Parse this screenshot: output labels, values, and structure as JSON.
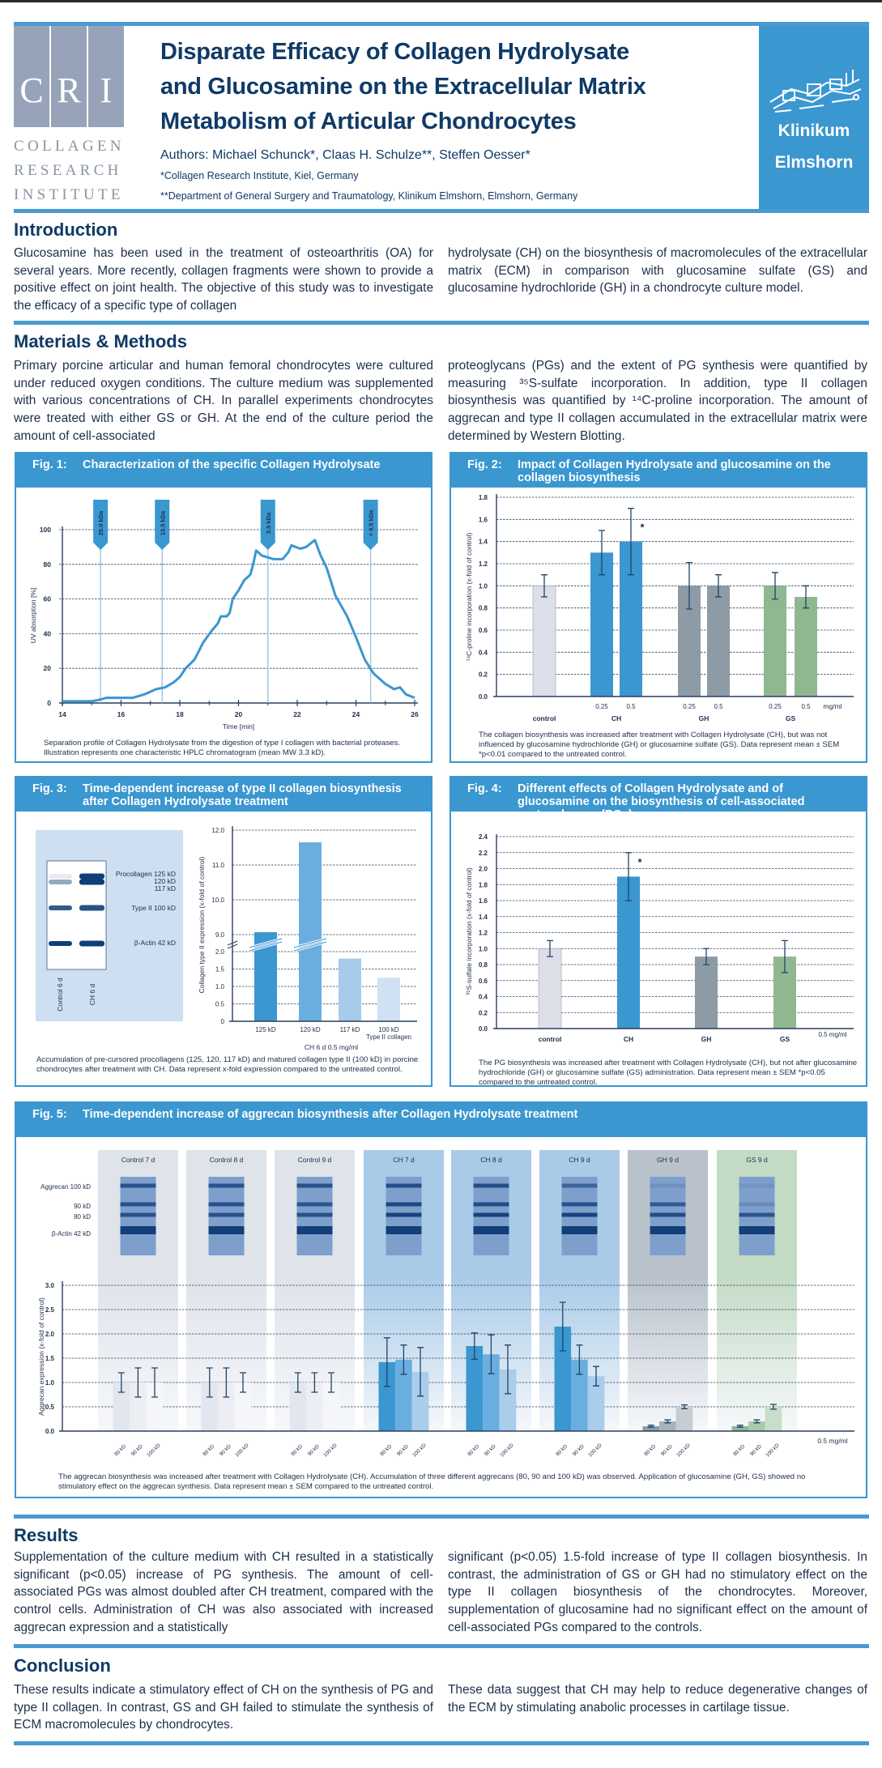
{
  "header": {
    "cri_letters": [
      "C",
      "R",
      "I"
    ],
    "cri_words": [
      "COLLAGEN",
      "RESEARCH",
      "INSTITUTE"
    ],
    "title_lines": [
      "Disparate Efficacy of Collagen Hydrolysate",
      "and Glucosamine on the Extracellular Matrix",
      "Metabolism of Articular Chondrocytes"
    ],
    "authors": "Authors: Michael Schunck*, Claas H. Schulze**, Steffen Oesser*",
    "affiliation_1": "*Collagen Research Institute, Kiel, Germany",
    "affiliation_2": "**Department of General Surgery and Traumatology, Klinikum Elmshorn, Elmshorn, Germany",
    "partner": [
      "Klinikum",
      "Elmshorn"
    ],
    "accent_color": "#3a97d0",
    "title_color": "#0f3a66"
  },
  "sections": {
    "introduction": {
      "heading": "Introduction",
      "col1": "Glucosamine has been used in the treatment of osteoarthritis (OA) for several years. More recently, collagen fragments were shown to provide a positive effect on joint health. The objective of this study was to investigate the efficacy of a specific type of collagen",
      "col2": "hydrolysate (CH) on the biosynthesis of macromolecules of the extracellular matrix (ECM) in comparison with glucosamine sulfate (GS) and glucosamine hydrochloride (GH) in a chondrocyte culture model."
    },
    "methods": {
      "heading": "Materials & Methods",
      "col1": "Primary porcine articular and human femoral chondrocytes were cultured under reduced oxygen conditions. The culture medium was supplemented with various concentrations of CH. In parallel experiments chondrocytes were treated with either GS or GH. At the end of the culture period the amount of cell-associated",
      "col2": "proteoglycans (PGs) and the extent of PG synthesis were quantified by measuring ³⁵S-sulfate incorporation. In addition, type II collagen biosynthesis was quantified by ¹⁴C-proline incorporation. The amount of aggrecan and type II collagen accumulated in the extracellular matrix were determined by Western Blotting."
    },
    "results": {
      "heading": "Results",
      "col1": "Supplementation of the culture medium with CH resulted in a statistically significant (p<0.05) increase of PG synthesis. The amount of cell-associated PGs was almost doubled after CH treatment, compared with the control cells. Administration of CH was also associated with increased aggrecan expression and a statistically",
      "col2": "significant (p<0.05) 1.5-fold increase of type II collagen biosynthesis. In contrast, the administration of GS or GH had no stimulatory effect on the type II collagen biosynthesis of the chondrocytes. Moreover, supplementation of glucosamine had no significant effect on the amount of cell-associated PGs compared to the controls."
    },
    "conclusion": {
      "heading": "Conclusion",
      "col1": "These results indicate a stimulatory effect of CH on the synthesis of PG and type II collagen. In contrast, GS and GH failed to stimulate the synthesis of ECM macromolecules by chondrocytes.",
      "col2": "These data suggest that CH may help to reduce degenerative changes of the ECM by stimulating anabolic processes in cartilage tissue."
    }
  },
  "chart_data": [
    {
      "type": "line",
      "label": "Fig. 1:",
      "title": "Characterization of the specific Collagen Hydrolysate",
      "xlabel": "Time [min]",
      "ylabel": "UV absorption [%]",
      "xlim": [
        14,
        26
      ],
      "ylim": [
        0,
        100
      ],
      "xticks": [
        "14",
        "16",
        "18",
        "20",
        "22",
        "24",
        "26"
      ],
      "yticks": [
        "0",
        "20",
        "40",
        "60",
        "80",
        "100"
      ],
      "grid": "horizontal dashed",
      "line_color": "#3a97d0",
      "markers": [
        {
          "label": "25.0 kDa",
          "x": 15.3
        },
        {
          "label": "13.5 kDa",
          "x": 17.4
        },
        {
          "label": "3.5 kDa",
          "x": 21.0
        },
        {
          "label": "< 0.5 kDa",
          "x": 24.5
        }
      ],
      "series": [
        {
          "x": [
            14,
            15,
            15.3,
            15.5,
            16.4,
            16.8,
            17.2,
            17.5,
            17.8,
            18,
            18.2,
            18.5,
            18.8,
            19.1,
            19.3,
            19.4,
            19.6,
            19.7,
            19.8,
            20,
            20.2,
            20.4,
            20.5,
            20.6,
            20.8,
            21.2,
            21.5,
            21.7,
            21.8,
            22.1,
            22.3,
            22.6,
            22.8,
            23,
            23.3,
            23.7,
            24,
            24.3,
            24.6,
            25,
            25.3,
            25.5,
            25.7,
            26
          ],
          "y": [
            1,
            1,
            2,
            3,
            3,
            5,
            8,
            9,
            12,
            15,
            20,
            25,
            35,
            42,
            46,
            50,
            50,
            52,
            60,
            65,
            71,
            74,
            80,
            88,
            85,
            83,
            83,
            87,
            91,
            89,
            90,
            94,
            85,
            78,
            62,
            50,
            38,
            25,
            17,
            11,
            8,
            9,
            5,
            3
          ]
        }
      ],
      "caption": "Separation profile of Collagen Hydrolysate from the digestion of type I collagen with bacterial proteases. Illustration represents one characteristic HPLC chromatogram (mean MW 3.3 kD)."
    },
    {
      "type": "bar",
      "label": "Fig. 2:",
      "title": "Impact of Collagen Hydrolysate and glucosamine on the collagen biosynthesis",
      "ylabel": "¹⁴C-proline incorporation (x-fold of control)",
      "ylim": [
        0,
        1.8
      ],
      "yticks": [
        "0.0",
        "0.2",
        "0.4",
        "0.6",
        "0.8",
        "1.0",
        "1.2",
        "1.4",
        "1.6",
        "1.8"
      ],
      "grid": "horizontal dashed",
      "unit": "mg/ml",
      "groups": [
        "control",
        "CH",
        "GH",
        "GS"
      ],
      "bars": [
        {
          "group": "control",
          "dose": "",
          "value": 1.0,
          "error": 0.1,
          "color": "#dcdfe8"
        },
        {
          "group": "CH",
          "dose": "0.25",
          "value": 1.3,
          "error": 0.2,
          "color": "#3a97d0"
        },
        {
          "group": "CH",
          "dose": "0.5",
          "value": 1.4,
          "error": 0.3,
          "color": "#3a97d0",
          "significance": "*"
        },
        {
          "group": "GH",
          "dose": "0.25",
          "value": 1.0,
          "error": 0.21,
          "color": "#8c9ba6"
        },
        {
          "group": "GH",
          "dose": "0.5",
          "value": 1.0,
          "error": 0.1,
          "color": "#8c9ba6"
        },
        {
          "group": "GS",
          "dose": "0.25",
          "value": 1.0,
          "error": 0.12,
          "color": "#8fb890"
        },
        {
          "group": "GS",
          "dose": "0.5",
          "value": 0.9,
          "error": 0.1,
          "color": "#8fb890"
        }
      ],
      "caption": "The collagen biosynthesis was increased after treatment with Collagen Hydrolysate (CH), but was not influenced by glucosamine hydrochloride (GH) or glucosamine sulfate (GS). Data represent mean ± SEM *p<0.01 compared to the untreated control."
    },
    {
      "type": "bar",
      "label": "Fig. 3:",
      "title": "Time-dependent increase of type II collagen biosynthesis after Collagen Hydrolysate treatment",
      "ylabel": "Collagen type II expression  (x-fold of control)",
      "xlabel": "CH 6 d 0.5 mg/ml",
      "broken_axis": true,
      "yticks_lower": [
        "0",
        "0.5",
        "1.0",
        "1.5",
        "2.0"
      ],
      "yticks_upper": [
        "9.0",
        "10.0",
        "11.0",
        "12.0"
      ],
      "categories": [
        "125 kD",
        "120 kD",
        "117 kD",
        "100 kD"
      ],
      "category_sublabel": "Type II collagen",
      "values": [
        9.07,
        11.65,
        1.8,
        1.25
      ],
      "colors": [
        "#3a97d0",
        "#6aaee0",
        "#a7cbea",
        "#cfe1f2"
      ],
      "blot": {
        "lanes": [
          "Control 6 d",
          "CH 6 d"
        ],
        "band_labels": [
          "Procollagen 125 kD",
          "120 kD",
          "117 kD",
          "Type II 100 kD",
          "β-Actin 42 kD"
        ]
      },
      "caption": "Accumulation of pre-cursored procollagens (125, 120, 117 kD) and matured collagen type II (100 kD) in porcine chondrocytes after treatment with CH. Data represent x-fold expression compared to the untreated control."
    },
    {
      "type": "bar",
      "label": "Fig. 4:",
      "title": "Different effects of Collagen Hydrolysate and of glucosamine on the biosynthesis of cell-associated proteoglycans (PGs)",
      "ylabel": "³⁵S-sulfate incorporation (x-fold of control)",
      "ylim": [
        0,
        2.4
      ],
      "yticks": [
        "0.0",
        "0.2",
        "0.4",
        "0.6",
        "0.8",
        "1.0",
        "1.2",
        "1.4",
        "1.6",
        "1.8",
        "2.0",
        "2.2",
        "2.4"
      ],
      "grid": "horizontal dashed",
      "unit": "0.5 mg/ml",
      "categories": [
        "control",
        "CH",
        "GH",
        "GS"
      ],
      "values": [
        1.0,
        1.9,
        0.9,
        0.9
      ],
      "errors": [
        0.1,
        0.3,
        0.1,
        0.2
      ],
      "significance": [
        "",
        "*",
        "",
        ""
      ],
      "colors": [
        "#dcdfe8",
        "#3a97d0",
        "#8c9ba6",
        "#8fb890"
      ],
      "caption": "The PG biosynthesis was increased after treatment with Collagen Hydrolysate (CH), but not after glucosamine hydrochloride (GH) or glucosamine sulfate (GS) administration. Data represent mean ± SEM *p<0.05 compared to the untreated control."
    },
    {
      "type": "bar",
      "label": "Fig. 5:",
      "title": "Time-dependent increase of aggrecan biosynthesis after Collagen Hydrolysate treatment",
      "ylabel": "Aggrecan expression (x-fold of control)",
      "ylim": [
        0,
        3.0
      ],
      "yticks": [
        "0.0",
        "0.5",
        "1.0",
        "1.5",
        "2.0",
        "2.5",
        "3.0"
      ],
      "grid": "horizontal dashed",
      "unit": "0.5 mg/ml",
      "categories": [
        "80 kD",
        "90 kD",
        "100 kD"
      ],
      "blot_labels": [
        "Aggrecan 100 kD",
        "90 kD",
        "80 kD",
        "β-Actin 42 kD"
      ],
      "groups": [
        {
          "label": "Control 7 d",
          "values": [
            1.0,
            1.0,
            1.0
          ],
          "errors": [
            0.2,
            0.3,
            0.3
          ],
          "panel_color": "#dfe3ea",
          "bar_colors": [
            "#e3e6ee",
            "#eceef3",
            "#f5f6f9"
          ]
        },
        {
          "label": "Control 8 d",
          "values": [
            1.0,
            1.0,
            1.0
          ],
          "errors": [
            0.3,
            0.3,
            0.2
          ],
          "panel_color": "#dfe3ea",
          "bar_colors": [
            "#e3e6ee",
            "#eceef3",
            "#f5f6f9"
          ]
        },
        {
          "label": "Control 9 d",
          "values": [
            1.0,
            1.0,
            1.0
          ],
          "errors": [
            0.2,
            0.2,
            0.2
          ],
          "panel_color": "#dfe3ea",
          "bar_colors": [
            "#e3e6ee",
            "#eceef3",
            "#f5f6f9"
          ]
        },
        {
          "label": "CH 7 d",
          "values": [
            1.42,
            1.47,
            1.22
          ],
          "errors": [
            0.5,
            0.3,
            0.5
          ],
          "panel_color": "#a9cbe8",
          "bar_colors": [
            "#3a97d0",
            "#6aaee0",
            "#a9cdeb"
          ]
        },
        {
          "label": "CH 8 d",
          "values": [
            1.75,
            1.58,
            1.27
          ],
          "errors": [
            0.27,
            0.4,
            0.5
          ],
          "panel_color": "#a9cbe8",
          "bar_colors": [
            "#3a97d0",
            "#6aaee0",
            "#a9cdeb"
          ]
        },
        {
          "label": "CH 9 d",
          "values": [
            2.15,
            1.47,
            1.13
          ],
          "errors": [
            0.5,
            0.3,
            0.2
          ],
          "panel_color": "#a9cbe8",
          "bar_colors": [
            "#3a97d0",
            "#6aaee0",
            "#a9cdeb"
          ]
        },
        {
          "label": "GH 9 d",
          "values": [
            0.1,
            0.2,
            0.5
          ],
          "errors": [
            0.02,
            0.03,
            0.04
          ],
          "panel_color": "#b9c2cb",
          "bar_colors": [
            "#8c9ba6",
            "#a6b3bc",
            "#c6cdd3"
          ]
        },
        {
          "label": "GS 9 d",
          "values": [
            0.1,
            0.2,
            0.5
          ],
          "errors": [
            0.02,
            0.03,
            0.05
          ],
          "panel_color": "#c3dbc4",
          "bar_colors": [
            "#8fb890",
            "#a9cba9",
            "#c8dec8"
          ]
        }
      ],
      "caption": "The aggrecan biosynthesis was increased after treatment with Collagen Hydrolysate (CH). Accumulation of three different aggrecans (80, 90 and 100 kD) was observed. Application of glucosamine (GH, GS) showed no stimulatory effect on the aggrecan synthesis.  Data represent mean ± SEM compared to the untreated control."
    }
  ]
}
